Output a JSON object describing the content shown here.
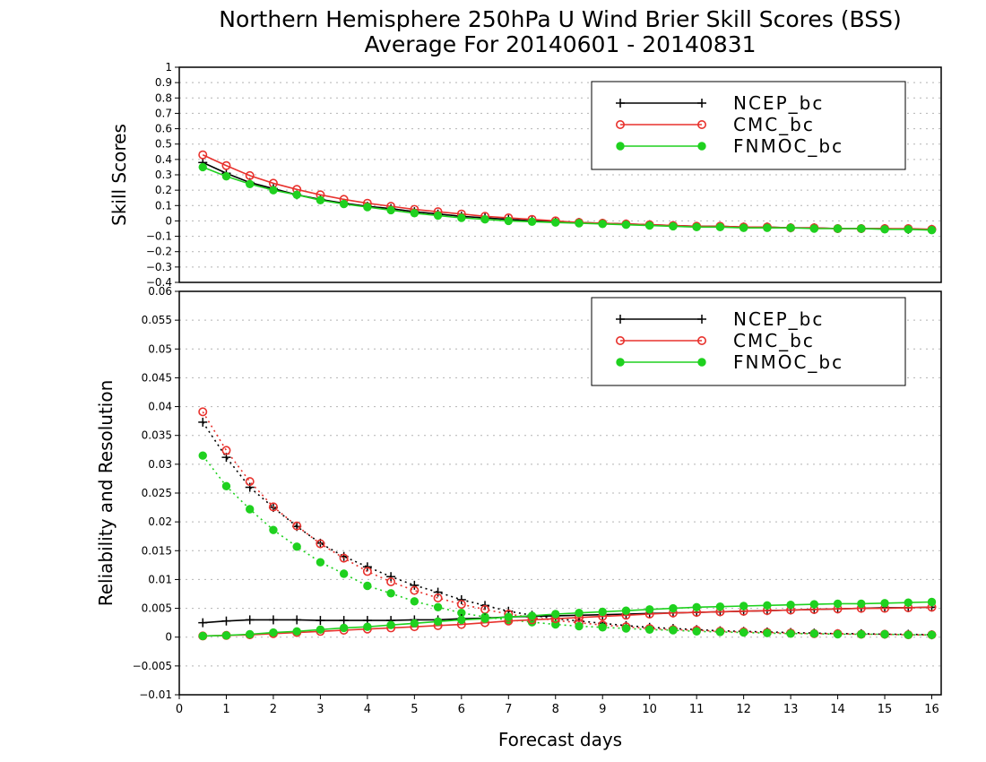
{
  "chart_data": {
    "title": "Northern Hemisphere 250hPa U Wind Brier Skill Scores (BSS)",
    "subtitle": "Average For 20140601 - 20140831",
    "xlabel": "Forecast days",
    "xlim": [
      0,
      16.2
    ],
    "xticks": [
      "0",
      "1",
      "2",
      "3",
      "4",
      "5",
      "6",
      "7",
      "8",
      "9",
      "10",
      "11",
      "12",
      "13",
      "14",
      "15",
      "16"
    ],
    "grid": true,
    "legend_position": "top-right",
    "panels": [
      {
        "type": "line",
        "ylabel": "Skill Scores",
        "ylim": [
          -0.4,
          1
        ],
        "yticks": [
          "−0.4",
          "−0.3",
          "−0.2",
          "−0.1",
          "0",
          "0.1",
          "0.2",
          "0.3",
          "0.4",
          "0.5",
          "0.6",
          "0.7",
          "0.8",
          "0.9",
          "1"
        ],
        "x": [
          0.5,
          1,
          1.5,
          2,
          2.5,
          3,
          3.5,
          4,
          4.5,
          5,
          5.5,
          6,
          6.5,
          7,
          7.5,
          8,
          8.5,
          9,
          9.5,
          10,
          10.5,
          11,
          11.5,
          12,
          12.5,
          13,
          13.5,
          14,
          14.5,
          15,
          15.5,
          16
        ],
        "series": [
          {
            "name": "NCEP_bc",
            "color": "#000000",
            "marker": "plus",
            "line": "solid",
            "values": [
              0.38,
              0.31,
              0.25,
              0.21,
              0.17,
              0.14,
              0.115,
              0.095,
              0.08,
              0.06,
              0.045,
              0.03,
              0.02,
              0.01,
              0.0,
              -0.005,
              -0.01,
              -0.015,
              -0.02,
              -0.025,
              -0.03,
              -0.035,
              -0.035,
              -0.04,
              -0.04,
              -0.045,
              -0.045,
              -0.05,
              -0.05,
              -0.05,
              -0.055,
              -0.055
            ]
          },
          {
            "name": "CMC_bc",
            "color": "#e8322d",
            "marker": "circle-open",
            "line": "solid",
            "values": [
              0.43,
              0.36,
              0.295,
              0.245,
              0.205,
              0.17,
              0.14,
              0.115,
              0.095,
              0.075,
              0.06,
              0.045,
              0.03,
              0.02,
              0.01,
              0.0,
              -0.01,
              -0.015,
              -0.02,
              -0.025,
              -0.03,
              -0.035,
              -0.035,
              -0.04,
              -0.04,
              -0.045,
              -0.045,
              -0.05,
              -0.05,
              -0.05,
              -0.05,
              -0.055
            ]
          },
          {
            "name": "FNMOC_bc",
            "color": "#1fd11f",
            "marker": "circle-filled",
            "line": "solid",
            "values": [
              0.35,
              0.29,
              0.24,
              0.2,
              0.17,
              0.135,
              0.11,
              0.09,
              0.07,
              0.05,
              0.035,
              0.02,
              0.01,
              0.0,
              -0.005,
              -0.01,
              -0.015,
              -0.02,
              -0.025,
              -0.03,
              -0.035,
              -0.04,
              -0.04,
              -0.045,
              -0.045,
              -0.045,
              -0.05,
              -0.05,
              -0.05,
              -0.055,
              -0.055,
              -0.06
            ]
          }
        ]
      },
      {
        "type": "line",
        "ylabel": "Reliability and Resolution",
        "ylim": [
          -0.01,
          0.06
        ],
        "yticks": [
          "−0.01",
          "−0.005",
          "0",
          "0.005",
          "0.01",
          "0.015",
          "0.02",
          "0.025",
          "0.03",
          "0.035",
          "0.04",
          "0.045",
          "0.05",
          "0.055",
          "0.06"
        ],
        "x": [
          0.5,
          1,
          1.5,
          2,
          2.5,
          3,
          3.5,
          4,
          4.5,
          5,
          5.5,
          6,
          6.5,
          7,
          7.5,
          8,
          8.5,
          9,
          9.5,
          10,
          10.5,
          11,
          11.5,
          12,
          12.5,
          13,
          13.5,
          14,
          14.5,
          15,
          15.5,
          16
        ],
        "series": [
          {
            "name": "NCEP_bc",
            "component": "reliability",
            "color": "#000000",
            "marker": "plus",
            "line": "dotted",
            "values": [
              0.0373,
              0.0312,
              0.026,
              0.0225,
              0.0192,
              0.0163,
              0.014,
              0.0122,
              0.0105,
              0.009,
              0.0078,
              0.0065,
              0.0055,
              0.0045,
              0.0038,
              0.0032,
              0.0028,
              0.0024,
              0.002,
              0.0017,
              0.0015,
              0.0013,
              0.0011,
              0.001,
              0.0009,
              0.0008,
              0.0007,
              0.0006,
              0.0006,
              0.0005,
              0.0005,
              0.0004
            ]
          },
          {
            "name": "CMC_bc",
            "component": "reliability",
            "color": "#e8322d",
            "marker": "circle-open",
            "line": "dotted",
            "values": [
              0.0391,
              0.0324,
              0.027,
              0.0226,
              0.0193,
              0.0162,
              0.0137,
              0.0114,
              0.0096,
              0.0081,
              0.0068,
              0.0057,
              0.0048,
              0.004,
              0.0034,
              0.0029,
              0.0025,
              0.0021,
              0.0018,
              0.0015,
              0.0013,
              0.0012,
              0.001,
              0.0009,
              0.0008,
              0.0007,
              0.0006,
              0.0006,
              0.0005,
              0.0005,
              0.0004,
              0.0004
            ]
          },
          {
            "name": "FNMOC_bc",
            "component": "reliability",
            "color": "#1fd11f",
            "marker": "circle-filled",
            "line": "dotted",
            "values": [
              0.0315,
              0.0262,
              0.0222,
              0.0186,
              0.0157,
              0.013,
              0.011,
              0.0089,
              0.0076,
              0.0062,
              0.0052,
              0.0042,
              0.0035,
              0.003,
              0.0026,
              0.0022,
              0.0019,
              0.0017,
              0.0015,
              0.0013,
              0.0012,
              0.001,
              0.0009,
              0.0008,
              0.0007,
              0.0006,
              0.0006,
              0.0005,
              0.0005,
              0.0005,
              0.0004,
              0.0004
            ]
          },
          {
            "name": "NCEP_bc",
            "component": "resolution",
            "color": "#000000",
            "marker": "plus",
            "line": "solid",
            "values": [
              0.0025,
              0.0028,
              0.003,
              0.003,
              0.003,
              0.0029,
              0.0029,
              0.0029,
              0.0029,
              0.003,
              0.003,
              0.0032,
              0.0033,
              0.0035,
              0.0036,
              0.0037,
              0.0038,
              0.0039,
              0.004,
              0.0041,
              0.0042,
              0.0043,
              0.0044,
              0.0045,
              0.0046,
              0.0047,
              0.0048,
              0.0049,
              0.005,
              0.0051,
              0.0051,
              0.0052
            ]
          },
          {
            "name": "CMC_bc",
            "component": "resolution",
            "color": "#e8322d",
            "marker": "circle-open",
            "line": "solid",
            "values": [
              0.0002,
              0.0003,
              0.0004,
              0.0006,
              0.0008,
              0.001,
              0.0012,
              0.0014,
              0.0016,
              0.0018,
              0.002,
              0.0022,
              0.0025,
              0.0028,
              0.003,
              0.0032,
              0.0034,
              0.0036,
              0.0038,
              0.004,
              0.0042,
              0.0043,
              0.0044,
              0.0045,
              0.0046,
              0.0047,
              0.0048,
              0.0049,
              0.005,
              0.005,
              0.0051,
              0.0052
            ]
          },
          {
            "name": "FNMOC_bc",
            "component": "resolution",
            "color": "#1fd11f",
            "marker": "circle-filled",
            "line": "solid",
            "values": [
              0.0002,
              0.0003,
              0.0005,
              0.0008,
              0.001,
              0.0013,
              0.0016,
              0.0018,
              0.0021,
              0.0024,
              0.0027,
              0.003,
              0.0032,
              0.0035,
              0.0037,
              0.004,
              0.0042,
              0.0044,
              0.0046,
              0.0048,
              0.005,
              0.0052,
              0.0053,
              0.0054,
              0.0055,
              0.0056,
              0.0057,
              0.0058,
              0.0058,
              0.0059,
              0.006,
              0.0061
            ]
          }
        ]
      }
    ]
  }
}
